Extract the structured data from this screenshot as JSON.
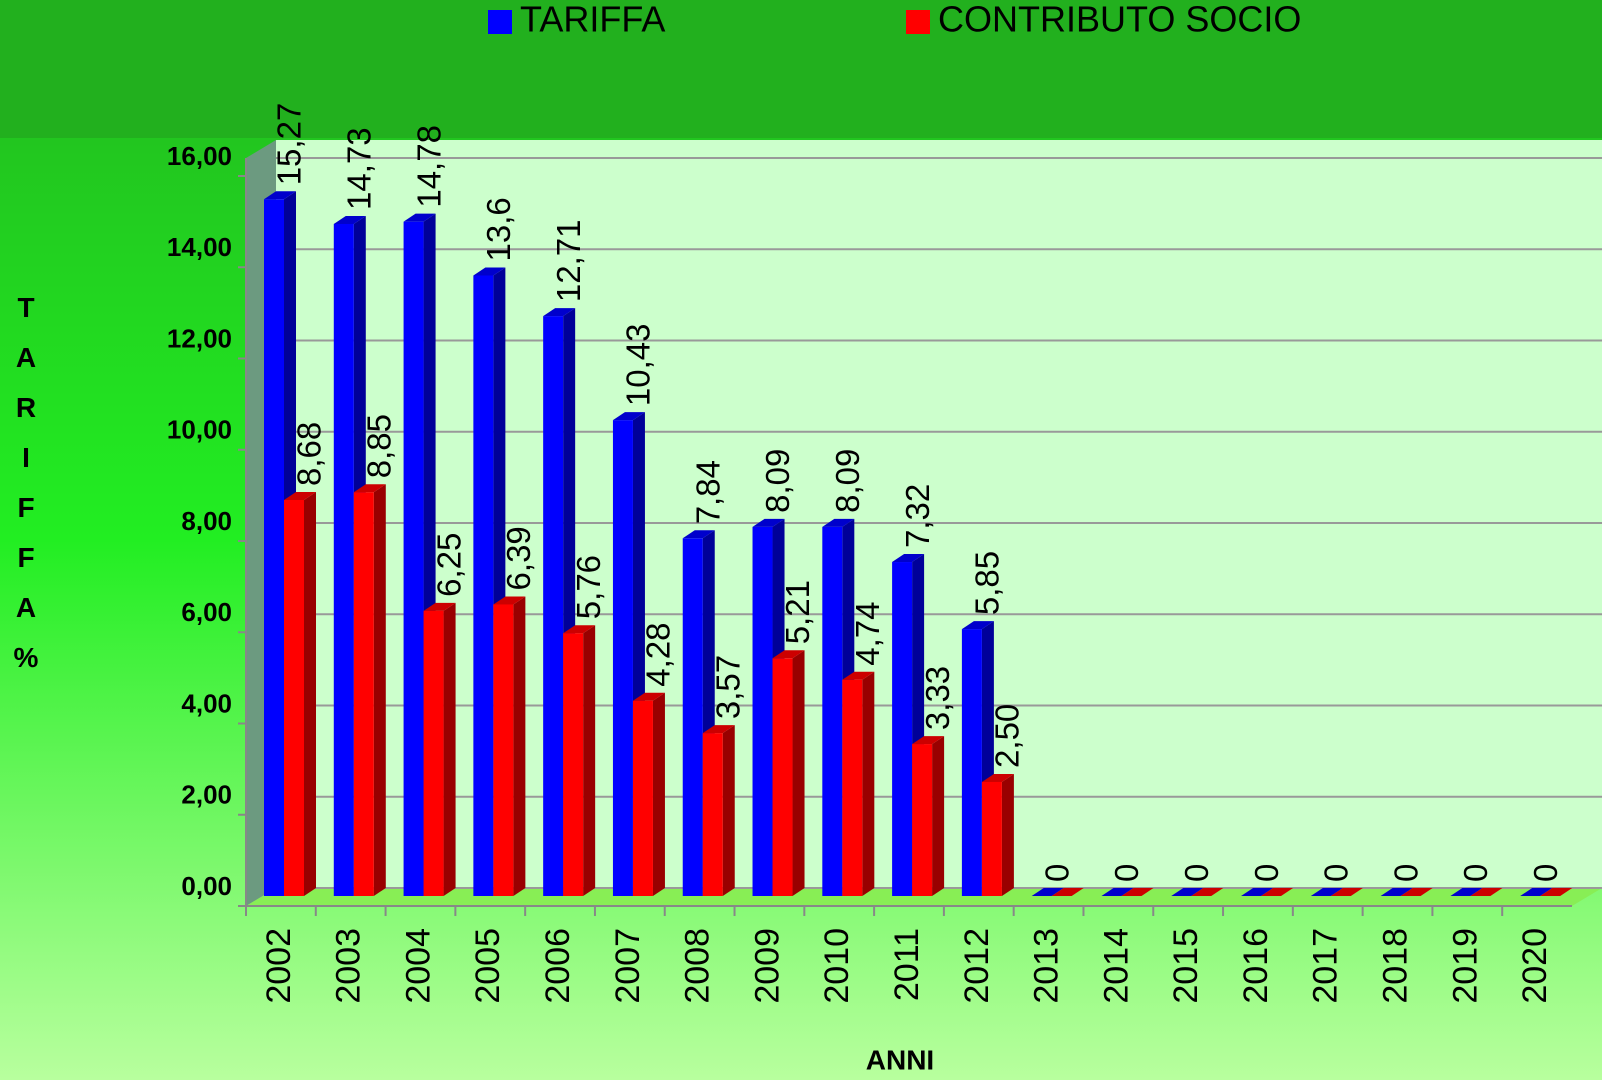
{
  "chart_data": {
    "type": "bar",
    "x_label": "ANNI",
    "y_label": "TARIFFA %",
    "categories": [
      "2002",
      "2003",
      "2004",
      "2005",
      "2006",
      "2007",
      "2008",
      "2009",
      "2010",
      "2011",
      "2012",
      "2013",
      "2014",
      "2015",
      "2016",
      "2017",
      "2018",
      "2019",
      "2020"
    ],
    "series": [
      {
        "name": "TARIFFA",
        "color": "#0000ff",
        "values": [
          15.27,
          14.73,
          14.78,
          13.6,
          12.71,
          10.43,
          7.84,
          8.09,
          8.09,
          7.32,
          5.85,
          0,
          0,
          0,
          0,
          0,
          0,
          0,
          0
        ],
        "value_labels": [
          "15,27",
          "14,73",
          "14,78",
          "13,6",
          "12,71",
          "10,43",
          "7,84",
          "8,09",
          "8,09",
          "7,32",
          "5,85",
          "0",
          "0",
          "0",
          "0",
          "0",
          "0",
          "0",
          "0"
        ]
      },
      {
        "name": "CONTRIBUTO SOCIO",
        "color": "#ff0000",
        "values": [
          8.68,
          8.85,
          6.25,
          6.39,
          5.76,
          4.28,
          3.57,
          5.21,
          4.74,
          3.33,
          2.5,
          0,
          0,
          0,
          0,
          0,
          0,
          0,
          0
        ],
        "value_labels": [
          "8,68",
          "8,85",
          "6,25",
          "6,39",
          "5,76",
          "4,28",
          "3,57",
          "5,21",
          "4,74",
          "3,33",
          "2,50",
          null,
          null,
          null,
          null,
          null,
          null,
          null,
          null
        ]
      }
    ],
    "ylim": [
      0,
      16
    ],
    "yticks": [
      {
        "value": 0,
        "label": "0,00"
      },
      {
        "value": 2,
        "label": "2,00"
      },
      {
        "value": 4,
        "label": "4,00"
      },
      {
        "value": 6,
        "label": "6,00"
      },
      {
        "value": 8,
        "label": "8,00"
      },
      {
        "value": 10,
        "label": "10,00"
      },
      {
        "value": 12,
        "label": "12,00"
      },
      {
        "value": 14,
        "label": "14,00"
      },
      {
        "value": 16,
        "label": "16,00"
      }
    ],
    "grid": true,
    "legend": "top"
  }
}
